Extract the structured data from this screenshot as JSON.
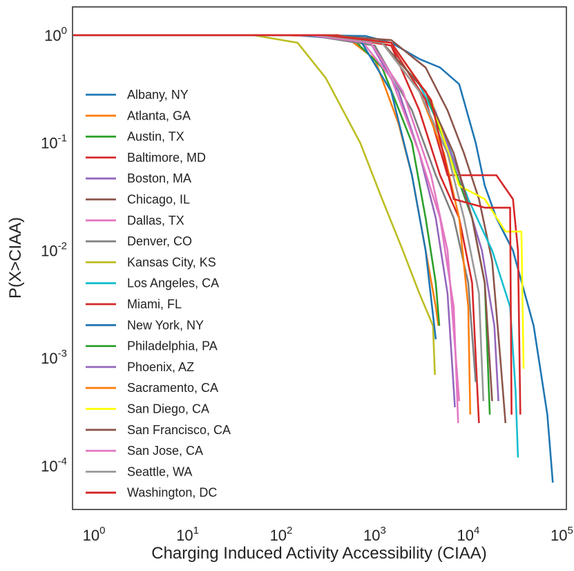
{
  "chart_data": {
    "type": "line",
    "title": "",
    "xlabel": "Charging Induced Activity Accessibility (CIAA)",
    "ylabel": "P(X>CIAA)",
    "xscale": "log",
    "yscale": "log",
    "xlim": [
      0.6,
      110000
    ],
    "ylim": [
      4e-05,
      1.8
    ],
    "xticks": [
      {
        "value": 1,
        "base": "10",
        "exp": "0"
      },
      {
        "value": 10,
        "base": "10",
        "exp": "1"
      },
      {
        "value": 100,
        "base": "10",
        "exp": "2"
      },
      {
        "value": 1000,
        "base": "10",
        "exp": "3"
      },
      {
        "value": 10000,
        "base": "10",
        "exp": "4"
      },
      {
        "value": 100000,
        "base": "10",
        "exp": "5"
      }
    ],
    "yticks": [
      {
        "value": 1,
        "base": "10",
        "exp": "0"
      },
      {
        "value": 0.1,
        "base": "10",
        "exp": "-1"
      },
      {
        "value": 0.01,
        "base": "10",
        "exp": "-2"
      },
      {
        "value": 0.001,
        "base": "10",
        "exp": "-3"
      },
      {
        "value": 0.0001,
        "base": "10",
        "exp": "-4"
      }
    ],
    "grid": false,
    "legend_position": "left",
    "series": [
      {
        "name": "Albany, NY",
        "color": "#1f77b4",
        "points": [
          [
            0.6,
            1
          ],
          [
            200,
            1
          ],
          [
            800,
            0.98
          ],
          [
            1500,
            0.85
          ],
          [
            3000,
            0.6
          ],
          [
            5000,
            0.5
          ],
          [
            8000,
            0.35
          ],
          [
            12000,
            0.1
          ],
          [
            15000,
            0.04
          ],
          [
            20000,
            0.02
          ],
          [
            30000,
            0.01
          ],
          [
            50000,
            0.002
          ],
          [
            70000,
            0.0003
          ],
          [
            80000,
            7e-05
          ]
        ]
      },
      {
        "name": "Atlanta, GA",
        "color": "#ff7f0e",
        "points": [
          [
            0.6,
            1
          ],
          [
            100,
            1
          ],
          [
            500,
            0.95
          ],
          [
            1000,
            0.6
          ],
          [
            1800,
            0.15
          ],
          [
            2500,
            0.05
          ],
          [
            3500,
            0.01
          ],
          [
            4500,
            0.003
          ],
          [
            4800,
            0.002
          ]
        ]
      },
      {
        "name": "Austin, TX",
        "color": "#2ca02c",
        "points": [
          [
            0.6,
            1
          ],
          [
            150,
            1
          ],
          [
            600,
            0.9
          ],
          [
            1200,
            0.5
          ],
          [
            2500,
            0.1
          ],
          [
            3500,
            0.02
          ],
          [
            4500,
            0.005
          ],
          [
            4900,
            0.002
          ]
        ]
      },
      {
        "name": "Baltimore, MD",
        "color": "#d62728",
        "points": [
          [
            30,
            1
          ],
          [
            400,
            1
          ],
          [
            1500,
            0.8
          ],
          [
            3000,
            0.2
          ],
          [
            5000,
            0.05
          ],
          [
            8000,
            0.02
          ],
          [
            11000,
            0.005
          ],
          [
            13000,
            0.00025
          ]
        ]
      },
      {
        "name": "Boston, MA",
        "color": "#9467bd",
        "points": [
          [
            0.6,
            1
          ],
          [
            200,
            1
          ],
          [
            900,
            0.85
          ],
          [
            1800,
            0.3
          ],
          [
            3000,
            0.08
          ],
          [
            4500,
            0.02
          ],
          [
            6000,
            0.004
          ],
          [
            7200,
            0.00035
          ]
        ]
      },
      {
        "name": "Chicago, IL",
        "color": "#8c564b",
        "points": [
          [
            0.6,
            1
          ],
          [
            300,
            1
          ],
          [
            1500,
            0.9
          ],
          [
            3500,
            0.5
          ],
          [
            6000,
            0.2
          ],
          [
            9000,
            0.08
          ],
          [
            13000,
            0.03
          ],
          [
            18000,
            0.008
          ],
          [
            22000,
            0.001
          ],
          [
            25000,
            0.00025
          ]
        ]
      },
      {
        "name": "Dallas, TX",
        "color": "#e377c2",
        "points": [
          [
            0.6,
            1
          ],
          [
            120,
            1
          ],
          [
            700,
            0.92
          ],
          [
            1500,
            0.4
          ],
          [
            3000,
            0.08
          ],
          [
            5000,
            0.02
          ],
          [
            7000,
            0.003
          ],
          [
            7800,
            0.00025
          ]
        ]
      },
      {
        "name": "Denver, CO",
        "color": "#7f7f7f",
        "points": [
          [
            0.6,
            1
          ],
          [
            200,
            1
          ],
          [
            1000,
            0.8
          ],
          [
            2500,
            0.2
          ],
          [
            4500,
            0.05
          ],
          [
            7000,
            0.02
          ],
          [
            10000,
            0.005
          ],
          [
            12000,
            0.0006
          ]
        ]
      },
      {
        "name": "Kansas City, KS",
        "color": "#bcbd22",
        "points": [
          [
            0.6,
            1
          ],
          [
            50,
            1
          ],
          [
            150,
            0.85
          ],
          [
            300,
            0.4
          ],
          [
            700,
            0.1
          ],
          [
            1200,
            0.03
          ],
          [
            2000,
            0.01
          ],
          [
            3000,
            0.004
          ],
          [
            4200,
            0.002
          ],
          [
            4400,
            0.0007
          ]
        ]
      },
      {
        "name": "Los Angeles, CA",
        "color": "#17becf",
        "points": [
          [
            0.6,
            1
          ],
          [
            250,
            1
          ],
          [
            1200,
            0.85
          ],
          [
            3000,
            0.35
          ],
          [
            6000,
            0.1
          ],
          [
            10000,
            0.03
          ],
          [
            18000,
            0.01
          ],
          [
            28000,
            0.003
          ],
          [
            32000,
            0.0005
          ],
          [
            34000,
            0.00012
          ]
        ]
      },
      {
        "name": "Miami, FL",
        "color": "#d62728",
        "points": [
          [
            0.6,
            1
          ],
          [
            300,
            1
          ],
          [
            1500,
            0.8
          ],
          [
            3500,
            0.25
          ],
          [
            6000,
            0.05
          ],
          [
            9000,
            0.05
          ],
          [
            20000,
            0.05
          ],
          [
            30000,
            0.03
          ],
          [
            34000,
            0.01
          ],
          [
            36000,
            0.0003
          ]
        ]
      },
      {
        "name": "New York, NY",
        "color": "#1f77b4",
        "points": [
          [
            0.6,
            1
          ],
          [
            150,
            1
          ],
          [
            700,
            0.9
          ],
          [
            1500,
            0.3
          ],
          [
            2500,
            0.05
          ],
          [
            3500,
            0.01
          ],
          [
            4500,
            0.0015
          ]
        ]
      },
      {
        "name": "Philadelphia, PA",
        "color": "#2ca02c",
        "points": [
          [
            0.6,
            1
          ],
          [
            250,
            1
          ],
          [
            1200,
            0.85
          ],
          [
            3500,
            0.3
          ],
          [
            7000,
            0.06
          ],
          [
            11000,
            0.02
          ],
          [
            15000,
            0.005
          ],
          [
            17000,
            0.0003
          ]
        ]
      },
      {
        "name": "Phoenix, AZ",
        "color": "#9467bd",
        "points": [
          [
            0.6,
            1
          ],
          [
            300,
            1
          ],
          [
            1500,
            0.85
          ],
          [
            4000,
            0.25
          ],
          [
            8000,
            0.05
          ],
          [
            14000,
            0.01
          ],
          [
            19000,
            0.002
          ],
          [
            21000,
            0.0004
          ]
        ]
      },
      {
        "name": "Sacramento, CA",
        "color": "#ff7f0e",
        "points": [
          [
            0.6,
            1
          ],
          [
            250,
            1
          ],
          [
            1200,
            0.85
          ],
          [
            3000,
            0.3
          ],
          [
            5500,
            0.08
          ],
          [
            8000,
            0.02
          ],
          [
            10000,
            0.003
          ],
          [
            10500,
            0.0003
          ]
        ]
      },
      {
        "name": "San Diego, CA",
        "color": "#ffff00",
        "points": [
          [
            0.6,
            1
          ],
          [
            300,
            1
          ],
          [
            1500,
            0.85
          ],
          [
            4000,
            0.25
          ],
          [
            8000,
            0.04
          ],
          [
            15000,
            0.03
          ],
          [
            25000,
            0.015
          ],
          [
            37000,
            0.015
          ],
          [
            39000,
            0.0008
          ]
        ]
      },
      {
        "name": "San Francisco, CA",
        "color": "#8c564b",
        "points": [
          [
            0.6,
            1
          ],
          [
            250,
            1
          ],
          [
            1200,
            0.85
          ],
          [
            3500,
            0.3
          ],
          [
            7000,
            0.08
          ],
          [
            11000,
            0.02
          ],
          [
            15000,
            0.005
          ],
          [
            18000,
            0.0004
          ]
        ]
      },
      {
        "name": "San Jose, CA",
        "color": "#e377c2",
        "points": [
          [
            0.6,
            1
          ],
          [
            200,
            1
          ],
          [
            900,
            0.85
          ],
          [
            2000,
            0.3
          ],
          [
            4000,
            0.05
          ],
          [
            6000,
            0.01
          ],
          [
            8000,
            0.0004
          ]
        ]
      },
      {
        "name": "Seattle, WA",
        "color": "#999999",
        "points": [
          [
            0.6,
            1
          ],
          [
            250,
            1
          ],
          [
            1200,
            0.85
          ],
          [
            3000,
            0.3
          ],
          [
            6000,
            0.08
          ],
          [
            9000,
            0.02
          ],
          [
            13000,
            0.004
          ],
          [
            14500,
            0.0004
          ]
        ]
      },
      {
        "name": "Washington, DC",
        "color": "#d62728",
        "points": [
          [
            0.6,
            1
          ],
          [
            300,
            1
          ],
          [
            1500,
            0.85
          ],
          [
            4000,
            0.25
          ],
          [
            7000,
            0.03
          ],
          [
            15000,
            0.025
          ],
          [
            28000,
            0.025
          ],
          [
            29000,
            0.0003
          ]
        ]
      }
    ]
  }
}
